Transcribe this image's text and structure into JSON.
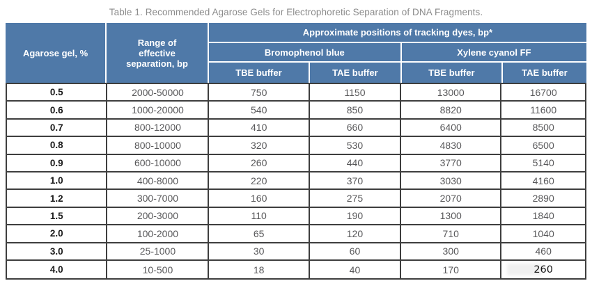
{
  "title": "Table 1. Recommended Agarose Gels for Electrophoretic Separation of DNA Fragments.",
  "header": {
    "agarose": "Agarose gel, %",
    "range": "Range of effective separation, bp",
    "tracking": "Approximate positions of tracking dyes, bp*",
    "bromophenol": "Bromophenol blue",
    "xylene": "Xylene cyanol FF",
    "buffers": [
      "TBE buffer",
      "TAE buffer",
      "TBE buffer",
      "TAE buffer"
    ]
  },
  "rows": [
    [
      "0.5",
      "2000-50000",
      "750",
      "1150",
      "13000",
      "16700"
    ],
    [
      "0.6",
      "1000-20000",
      "540",
      "850",
      "8820",
      "11600"
    ],
    [
      "0.7",
      "800-12000",
      "410",
      "660",
      "6400",
      "8500"
    ],
    [
      "0.8",
      "800-10000",
      "320",
      "530",
      "4830",
      "6500"
    ],
    [
      "0.9",
      "600-10000",
      "260",
      "440",
      "3770",
      "5140"
    ],
    [
      "1.0",
      "400-8000",
      "220",
      "370",
      "3030",
      "4160"
    ],
    [
      "1.2",
      "300-7000",
      "160",
      "275",
      "2070",
      "2890"
    ],
    [
      "1.5",
      "200-3000",
      "110",
      "190",
      "1300",
      "1840"
    ],
    [
      "2.0",
      "100-2000",
      "65",
      "120",
      "710",
      "1040"
    ],
    [
      "3.0",
      "25-1000",
      "30",
      "60",
      "300",
      "460"
    ],
    [
      "4.0",
      "10-500",
      "18",
      "40",
      "170",
      "260"
    ]
  ],
  "colors": {
    "header_blue": "#4f79a8",
    "grid_border": "#3e3e3e",
    "title_text": "#8b8b8b",
    "value_text": "#58585a",
    "gel_text": "#1a1a1a",
    "background": "#ffffff"
  }
}
